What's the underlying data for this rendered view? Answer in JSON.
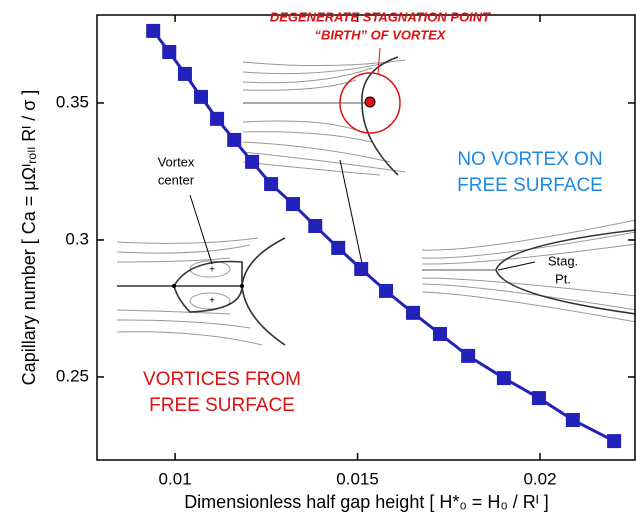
{
  "chart_data": {
    "type": "line",
    "x_label": "Dimensionless half gap height [ H*₀ = H₀ / Rᴵ ]",
    "y_label": "Capillary number [ Ca = μΩᴵᵣₒₗₗ Rᴵ / σ ]",
    "x": [
      0.0094,
      0.00984,
      0.01027,
      0.01071,
      0.01115,
      0.01162,
      0.01211,
      0.01263,
      0.01323,
      0.01384,
      0.01447,
      0.0151,
      0.01578,
      0.01652,
      0.01726,
      0.01803,
      0.01901,
      0.01997,
      0.0209,
      0.02203
    ],
    "series": [
      {
        "color": "#2222bb",
        "values": [
          0.3763,
          0.3686,
          0.3606,
          0.3522,
          0.3442,
          0.3365,
          0.3285,
          0.3204,
          0.3131,
          0.3051,
          0.2971,
          0.2894,
          0.2814,
          0.2734,
          0.2657,
          0.2577,
          0.2496,
          0.2423,
          0.2343,
          0.2266
        ]
      }
    ],
    "xlim": [
      0.00786,
      0.02263
    ],
    "ylim": [
      0.2197,
      0.3821
    ],
    "xticks": [
      0.01,
      0.015,
      0.02
    ],
    "yticks": [
      0.25,
      0.3,
      0.35
    ],
    "grid": false,
    "annotations": [
      {
        "lines": [
          "DEGENERATE STAGNATION POINT",
          "“BIRTH” OF VORTEX"
        ],
        "color": "#dd1111"
      },
      {
        "lines": [
          "NO VORTEX ON",
          "FREE SURFACE"
        ],
        "color": "#1e88e5"
      },
      {
        "lines": [
          "VORTICES FROM",
          "FREE SURFACE"
        ],
        "color": "#dd1111"
      },
      {
        "lines": [
          "Vortex",
          "center"
        ],
        "color": "#000000"
      },
      {
        "lines": [
          "Stag.",
          "Pt."
        ],
        "color": "#000000"
      }
    ]
  }
}
